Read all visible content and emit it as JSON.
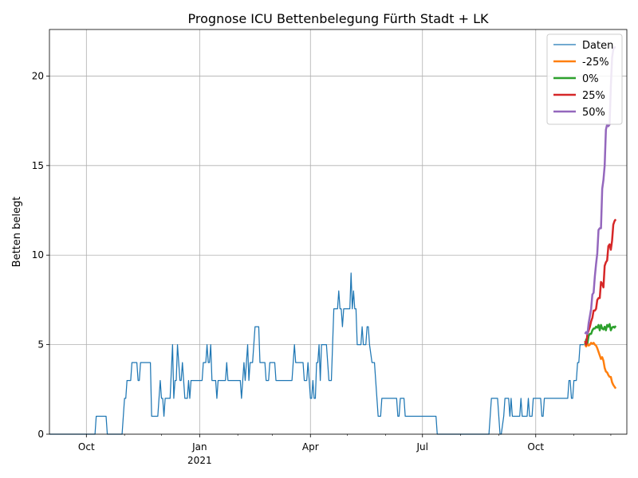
{
  "chart_data": {
    "type": "line",
    "title": "Prognose ICU Bettenbelegung Fürth Stadt + LK",
    "xlabel": "",
    "ylabel": "Betten belegt",
    "xlim": [
      "2020-09-01",
      "2021-12-14"
    ],
    "ylim": [
      0,
      22.6
    ],
    "grid": true,
    "legend_position": "top-right",
    "x_ticks": [
      {
        "date": "2020-10-01",
        "label": "Oct",
        "sublabel": ""
      },
      {
        "date": "2021-01-01",
        "label": "Jan",
        "sublabel": "2021"
      },
      {
        "date": "2021-04-01",
        "label": "Apr",
        "sublabel": ""
      },
      {
        "date": "2021-07-01",
        "label": "Jul",
        "sublabel": ""
      },
      {
        "date": "2021-10-01",
        "label": "Oct",
        "sublabel": ""
      }
    ],
    "x_minor_ticks": [
      "2020-11-01",
      "2020-12-01",
      "2021-02-01",
      "2021-03-01",
      "2021-05-01",
      "2021-06-01",
      "2021-08-01",
      "2021-09-01",
      "2021-11-01",
      "2021-12-01"
    ],
    "y_ticks": [
      0,
      5,
      10,
      15,
      20
    ],
    "series": [
      {
        "name": "Daten",
        "color": "#1f77b4",
        "width": 1,
        "points": [
          [
            "2020-09-01",
            0
          ],
          [
            "2020-10-08",
            0
          ],
          [
            "2020-10-09",
            1
          ],
          [
            "2020-10-17",
            1
          ],
          [
            "2020-10-18",
            0
          ],
          [
            "2020-10-30",
            0
          ],
          [
            "2020-11-01",
            2
          ],
          [
            "2020-11-02",
            2
          ],
          [
            "2020-11-03",
            3
          ],
          [
            "2020-11-06",
            3
          ],
          [
            "2020-11-07",
            4
          ],
          [
            "2020-11-11",
            4
          ],
          [
            "2020-11-12",
            3
          ],
          [
            "2020-11-13",
            3
          ],
          [
            "2020-11-14",
            4
          ],
          [
            "2020-11-22",
            4
          ],
          [
            "2020-11-23",
            1
          ],
          [
            "2020-11-28",
            1
          ],
          [
            "2020-11-29",
            2
          ],
          [
            "2020-11-30",
            3
          ],
          [
            "2020-12-01",
            2
          ],
          [
            "2020-12-02",
            2
          ],
          [
            "2020-12-03",
            1
          ],
          [
            "2020-12-04",
            2
          ],
          [
            "2020-12-08",
            2
          ],
          [
            "2020-12-10",
            5
          ],
          [
            "2020-12-11",
            2
          ],
          [
            "2020-12-12",
            3
          ],
          [
            "2020-12-13",
            3
          ],
          [
            "2020-12-14",
            5
          ],
          [
            "2020-12-15",
            4
          ],
          [
            "2020-12-16",
            3
          ],
          [
            "2020-12-17",
            3
          ],
          [
            "2020-12-18",
            4
          ],
          [
            "2020-12-19",
            3
          ],
          [
            "2020-12-20",
            2
          ],
          [
            "2020-12-22",
            2
          ],
          [
            "2020-12-23",
            3
          ],
          [
            "2020-12-24",
            2
          ],
          [
            "2020-12-25",
            3
          ],
          [
            "2021-01-03",
            3
          ],
          [
            "2021-01-04",
            4
          ],
          [
            "2021-01-06",
            4
          ],
          [
            "2021-01-07",
            5
          ],
          [
            "2021-01-08",
            4
          ],
          [
            "2021-01-09",
            4
          ],
          [
            "2021-01-10",
            5
          ],
          [
            "2021-01-11",
            3
          ],
          [
            "2021-01-14",
            3
          ],
          [
            "2021-01-15",
            2
          ],
          [
            "2021-01-16",
            3
          ],
          [
            "2021-01-22",
            3
          ],
          [
            "2021-01-23",
            4
          ],
          [
            "2021-01-24",
            3
          ],
          [
            "2021-02-03",
            3
          ],
          [
            "2021-02-04",
            2
          ],
          [
            "2021-02-05",
            3
          ],
          [
            "2021-02-06",
            4
          ],
          [
            "2021-02-07",
            3
          ],
          [
            "2021-02-08",
            4
          ],
          [
            "2021-02-09",
            5
          ],
          [
            "2021-02-10",
            3
          ],
          [
            "2021-02-11",
            4
          ],
          [
            "2021-02-13",
            4
          ],
          [
            "2021-02-14",
            5
          ],
          [
            "2021-02-15",
            6
          ],
          [
            "2021-02-18",
            6
          ],
          [
            "2021-02-19",
            4
          ],
          [
            "2021-02-23",
            4
          ],
          [
            "2021-02-24",
            3
          ],
          [
            "2021-02-26",
            3
          ],
          [
            "2021-02-27",
            4
          ],
          [
            "2021-03-03",
            4
          ],
          [
            "2021-03-04",
            3
          ],
          [
            "2021-03-17",
            3
          ],
          [
            "2021-03-18",
            4
          ],
          [
            "2021-03-19",
            5
          ],
          [
            "2021-03-20",
            4
          ],
          [
            "2021-03-26",
            4
          ],
          [
            "2021-03-27",
            3
          ],
          [
            "2021-03-29",
            3
          ],
          [
            "2021-03-30",
            4
          ],
          [
            "2021-03-31",
            3
          ],
          [
            "2021-04-01",
            2
          ],
          [
            "2021-04-02",
            2
          ],
          [
            "2021-04-03",
            3
          ],
          [
            "2021-04-04",
            2
          ],
          [
            "2021-04-05",
            2
          ],
          [
            "2021-04-06",
            4
          ],
          [
            "2021-04-07",
            4
          ],
          [
            "2021-04-08",
            5
          ],
          [
            "2021-04-09",
            3
          ],
          [
            "2021-04-10",
            5
          ],
          [
            "2021-04-14",
            5
          ],
          [
            "2021-04-15",
            4
          ],
          [
            "2021-04-16",
            3
          ],
          [
            "2021-04-18",
            3
          ],
          [
            "2021-04-19",
            5
          ],
          [
            "2021-04-20",
            7
          ],
          [
            "2021-04-23",
            7
          ],
          [
            "2021-04-24",
            8
          ],
          [
            "2021-04-25",
            7
          ],
          [
            "2021-04-26",
            7
          ],
          [
            "2021-04-27",
            6
          ],
          [
            "2021-04-28",
            7
          ],
          [
            "2021-05-03",
            7
          ],
          [
            "2021-05-04",
            9
          ],
          [
            "2021-05-05",
            7
          ],
          [
            "2021-05-06",
            8
          ],
          [
            "2021-05-07",
            7
          ],
          [
            "2021-05-08",
            7
          ],
          [
            "2021-05-09",
            5
          ],
          [
            "2021-05-12",
            5
          ],
          [
            "2021-05-13",
            6
          ],
          [
            "2021-05-14",
            5
          ],
          [
            "2021-05-16",
            5
          ],
          [
            "2021-05-17",
            6
          ],
          [
            "2021-05-18",
            6
          ],
          [
            "2021-05-19",
            5
          ],
          [
            "2021-05-21",
            4
          ],
          [
            "2021-05-23",
            4
          ],
          [
            "2021-05-24",
            3
          ],
          [
            "2021-05-25",
            2
          ],
          [
            "2021-05-26",
            1
          ],
          [
            "2021-05-28",
            1
          ],
          [
            "2021-05-29",
            2
          ],
          [
            "2021-06-10",
            2
          ],
          [
            "2021-06-11",
            1
          ],
          [
            "2021-06-12",
            1
          ],
          [
            "2021-06-13",
            2
          ],
          [
            "2021-06-16",
            2
          ],
          [
            "2021-06-17",
            1
          ],
          [
            "2021-07-12",
            1
          ],
          [
            "2021-07-13",
            0
          ],
          [
            "2021-08-24",
            0
          ],
          [
            "2021-08-26",
            2
          ],
          [
            "2021-08-31",
            2
          ],
          [
            "2021-09-01",
            1
          ],
          [
            "2021-09-02",
            0
          ],
          [
            "2021-09-03",
            0
          ],
          [
            "2021-09-05",
            1
          ],
          [
            "2021-09-06",
            2
          ],
          [
            "2021-09-09",
            2
          ],
          [
            "2021-09-10",
            1
          ],
          [
            "2021-09-11",
            2
          ],
          [
            "2021-09-12",
            1
          ],
          [
            "2021-09-18",
            1
          ],
          [
            "2021-09-19",
            2
          ],
          [
            "2021-09-20",
            1
          ],
          [
            "2021-09-24",
            1
          ],
          [
            "2021-09-25",
            2
          ],
          [
            "2021-09-26",
            1
          ],
          [
            "2021-09-28",
            1
          ],
          [
            "2021-09-29",
            2
          ],
          [
            "2021-10-05",
            2
          ],
          [
            "2021-10-06",
            1
          ],
          [
            "2021-10-07",
            1
          ],
          [
            "2021-10-08",
            2
          ],
          [
            "2021-10-27",
            2
          ],
          [
            "2021-10-28",
            3
          ],
          [
            "2021-10-29",
            3
          ],
          [
            "2021-10-30",
            2
          ],
          [
            "2021-10-31",
            2
          ],
          [
            "2021-11-01",
            3
          ],
          [
            "2021-11-03",
            3
          ],
          [
            "2021-11-04",
            4
          ],
          [
            "2021-11-05",
            4
          ],
          [
            "2021-11-06",
            5
          ],
          [
            "2021-11-09",
            5
          ]
        ]
      },
      {
        "name": "-25%",
        "color": "#ff7f0e",
        "width": 2,
        "points": [
          [
            "2021-11-10",
            5.0
          ],
          [
            "2021-11-11",
            4.9
          ],
          [
            "2021-11-12",
            5.1
          ],
          [
            "2021-11-13",
            4.95
          ],
          [
            "2021-11-14",
            5.0
          ],
          [
            "2021-11-15",
            5.1
          ],
          [
            "2021-11-16",
            5.05
          ],
          [
            "2021-11-17",
            5.1
          ],
          [
            "2021-11-18",
            5.0
          ],
          [
            "2021-11-19",
            4.95
          ],
          [
            "2021-11-20",
            4.8
          ],
          [
            "2021-11-21",
            4.6
          ],
          [
            "2021-11-22",
            4.4
          ],
          [
            "2021-11-23",
            4.2
          ],
          [
            "2021-11-24",
            4.3
          ],
          [
            "2021-11-25",
            4.1
          ],
          [
            "2021-11-26",
            3.7
          ],
          [
            "2021-11-27",
            3.5
          ],
          [
            "2021-11-28",
            3.45
          ],
          [
            "2021-11-29",
            3.3
          ],
          [
            "2021-11-30",
            3.2
          ],
          [
            "2021-12-01",
            3.2
          ],
          [
            "2021-12-02",
            2.9
          ],
          [
            "2021-12-03",
            2.75
          ],
          [
            "2021-12-04",
            2.65
          ],
          [
            "2021-12-05",
            2.55
          ]
        ]
      },
      {
        "name": "0%",
        "color": "#2ca02c",
        "width": 2,
        "points": [
          [
            "2021-11-10",
            5.0
          ],
          [
            "2021-11-11",
            5.3
          ],
          [
            "2021-11-12",
            5.1
          ],
          [
            "2021-11-13",
            5.5
          ],
          [
            "2021-11-14",
            5.6
          ],
          [
            "2021-11-15",
            5.6
          ],
          [
            "2021-11-16",
            5.8
          ],
          [
            "2021-11-17",
            5.9
          ],
          [
            "2021-11-18",
            5.9
          ],
          [
            "2021-11-19",
            6.0
          ],
          [
            "2021-11-20",
            5.95
          ],
          [
            "2021-11-21",
            6.1
          ],
          [
            "2021-11-22",
            5.8
          ],
          [
            "2021-11-23",
            6.1
          ],
          [
            "2021-11-24",
            5.9
          ],
          [
            "2021-11-25",
            5.85
          ],
          [
            "2021-11-26",
            6.0
          ],
          [
            "2021-11-27",
            5.8
          ],
          [
            "2021-11-28",
            6.1
          ],
          [
            "2021-11-29",
            6.0
          ],
          [
            "2021-11-30",
            6.15
          ],
          [
            "2021-12-01",
            5.8
          ],
          [
            "2021-12-02",
            5.95
          ],
          [
            "2021-12-03",
            6.0
          ],
          [
            "2021-12-04",
            5.95
          ],
          [
            "2021-12-05",
            6.05
          ]
        ]
      },
      {
        "name": "25%",
        "color": "#d62728",
        "width": 2,
        "points": [
          [
            "2021-11-10",
            5.2
          ],
          [
            "2021-11-11",
            5.0
          ],
          [
            "2021-11-12",
            5.6
          ],
          [
            "2021-11-13",
            5.8
          ],
          [
            "2021-11-14",
            6.0
          ],
          [
            "2021-11-15",
            6.3
          ],
          [
            "2021-11-16",
            6.5
          ],
          [
            "2021-11-17",
            6.9
          ],
          [
            "2021-11-18",
            6.9
          ],
          [
            "2021-11-19",
            7.0
          ],
          [
            "2021-11-20",
            7.5
          ],
          [
            "2021-11-21",
            7.6
          ],
          [
            "2021-11-22",
            7.6
          ],
          [
            "2021-11-23",
            8.5
          ],
          [
            "2021-11-24",
            8.4
          ],
          [
            "2021-11-25",
            8.2
          ],
          [
            "2021-11-26",
            9.4
          ],
          [
            "2021-11-27",
            9.6
          ],
          [
            "2021-11-28",
            9.7
          ],
          [
            "2021-11-29",
            10.5
          ],
          [
            "2021-11-30",
            10.6
          ],
          [
            "2021-12-01",
            10.3
          ],
          [
            "2021-12-02",
            10.8
          ],
          [
            "2021-12-03",
            11.7
          ],
          [
            "2021-12-04",
            11.9
          ],
          [
            "2021-12-05",
            12.0
          ]
        ]
      },
      {
        "name": "50%",
        "color": "#9467bd",
        "width": 2,
        "points": [
          [
            "2021-11-10",
            5.6
          ],
          [
            "2021-11-11",
            5.7
          ],
          [
            "2021-11-12",
            5.6
          ],
          [
            "2021-11-13",
            6.2
          ],
          [
            "2021-11-14",
            6.6
          ],
          [
            "2021-11-15",
            7.0
          ],
          [
            "2021-11-16",
            7.8
          ],
          [
            "2021-11-17",
            7.9
          ],
          [
            "2021-11-18",
            8.8
          ],
          [
            "2021-11-19",
            9.5
          ],
          [
            "2021-11-20",
            10.1
          ],
          [
            "2021-11-21",
            11.4
          ],
          [
            "2021-11-22",
            11.5
          ],
          [
            "2021-11-23",
            11.5
          ],
          [
            "2021-11-24",
            13.7
          ],
          [
            "2021-11-25",
            14.2
          ],
          [
            "2021-11-26",
            15.0
          ],
          [
            "2021-11-27",
            17.0
          ],
          [
            "2021-11-28",
            17.3
          ],
          [
            "2021-11-29",
            17.2
          ],
          [
            "2021-11-30",
            17.3
          ],
          [
            "2021-12-01",
            19.4
          ],
          [
            "2021-12-02",
            21.0
          ],
          [
            "2021-12-03",
            21.5
          ],
          [
            "2021-12-04",
            21.6
          ],
          [
            "2021-12-05",
            21.6
          ]
        ]
      }
    ]
  }
}
